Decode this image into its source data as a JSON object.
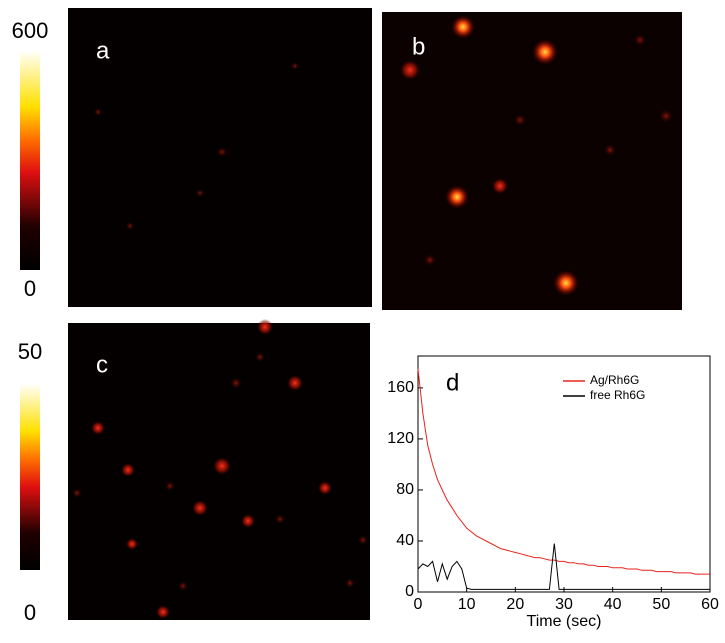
{
  "colorbars": [
    {
      "top": 600,
      "bottom": 0
    },
    {
      "top": 50,
      "bottom": 0
    }
  ],
  "panels": [
    "a",
    "b",
    "c"
  ],
  "chart_data": {
    "type": "line",
    "annotation": "d",
    "x_label": "Time (sec)",
    "x": [
      0,
      1,
      2,
      3,
      4,
      5,
      6,
      7,
      8,
      9,
      10,
      11,
      12,
      13,
      14,
      15,
      16,
      17,
      18,
      19,
      20,
      21,
      22,
      23,
      24,
      25,
      26,
      27,
      28,
      29,
      30,
      31,
      32,
      33,
      34,
      35,
      36,
      37,
      38,
      39,
      40,
      41,
      42,
      43,
      44,
      45,
      46,
      47,
      48,
      49,
      50,
      51,
      52,
      53,
      54,
      55,
      56,
      57,
      58,
      59,
      60
    ],
    "series": [
      {
        "name": "Ag/Rh6G",
        "color": "#e8231e",
        "values": [
          175,
          140,
          115,
          100,
          88,
          80,
          72,
          66,
          60,
          55,
          50,
          47,
          44,
          42,
          40,
          38,
          36,
          34,
          33,
          32,
          31,
          30,
          29,
          28,
          27,
          27,
          26,
          25,
          25,
          24,
          24,
          23,
          23,
          22,
          22,
          21,
          21,
          20,
          20,
          20,
          19,
          19,
          19,
          18,
          18,
          18,
          17,
          17,
          17,
          16,
          16,
          16,
          16,
          15,
          15,
          15,
          15,
          14,
          14,
          14,
          14
        ]
      },
      {
        "name": "free Rh6G",
        "color": "#000000",
        "values": [
          18,
          22,
          20,
          24,
          8,
          22,
          10,
          20,
          24,
          18,
          3,
          2,
          2,
          2,
          2,
          2,
          2,
          2,
          2,
          2,
          2,
          2,
          2,
          2,
          2,
          2,
          2,
          2,
          38,
          2,
          2,
          2,
          2,
          2,
          2,
          2,
          2,
          2,
          2,
          2,
          2,
          2,
          2,
          2,
          2,
          2,
          2,
          2,
          2,
          2,
          2,
          2,
          2,
          2,
          2,
          2,
          2,
          2,
          2,
          2,
          2
        ]
      }
    ],
    "xlim": [
      0,
      60
    ],
    "xticks": [
      0,
      10,
      20,
      30,
      40,
      50,
      60
    ],
    "ylim": [
      0,
      185
    ],
    "yticks": [
      0,
      40,
      80,
      120,
      160
    ],
    "legend": "upper right"
  }
}
